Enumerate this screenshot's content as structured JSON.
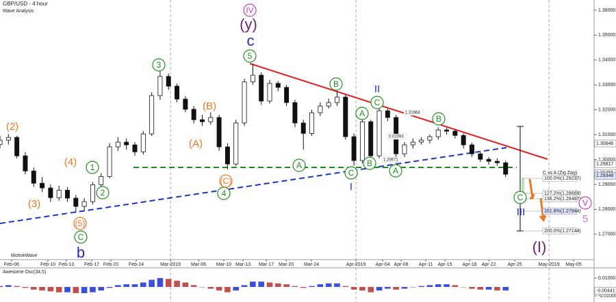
{
  "chart_data": {
    "type": "candlestick",
    "title": "GBP/USD - 4 hour",
    "subtitle": "Wave Analysis",
    "watermark": "MotiveWave",
    "xlim": [
      0,
      70.5
    ],
    "ylim": [
      1.2598,
      1.3641
    ],
    "yticks": [
      {
        "value": 1.36,
        "label": "1.36000"
      },
      {
        "value": 1.35,
        "label": "1.35000"
      },
      {
        "value": 1.34,
        "label": "1.34000"
      },
      {
        "value": 1.33,
        "label": "1.33000"
      },
      {
        "value": 1.32,
        "label": "1.32000"
      },
      {
        "value": 1.31,
        "label": "1.31000"
      },
      {
        "value": 1.3,
        "label": "1.30000"
      },
      {
        "value": 1.29,
        "label": "1.29000"
      },
      {
        "value": 1.28,
        "label": "1.28000"
      },
      {
        "value": 1.27,
        "label": "1.27000"
      }
    ],
    "xticks": [
      {
        "value": 1.38,
        "label": "Feb-06"
      },
      {
        "value": 5.69,
        "label": "Feb-10"
      },
      {
        "value": 7.88,
        "label": "Feb-13"
      },
      {
        "value": 10.89,
        "label": "Feb-17"
      },
      {
        "value": 13.16,
        "label": "Feb-20"
      },
      {
        "value": 16.17,
        "label": "Feb-24"
      },
      {
        "value": 20.23,
        "label": "Mar-2019"
      },
      {
        "value": 23.56,
        "label": "Mar-06"
      },
      {
        "value": 26.56,
        "label": "Mar-10"
      },
      {
        "value": 28.84,
        "label": "Mar-13"
      },
      {
        "value": 31.6,
        "label": "Mar-17"
      },
      {
        "value": 33.96,
        "label": "Mar-20"
      },
      {
        "value": 36.96,
        "label": "Mar-24"
      },
      {
        "value": 42.24,
        "label": "Apr-2019"
      },
      {
        "value": 45.41,
        "label": "Apr-04"
      },
      {
        "value": 47.6,
        "label": "Apr-08"
      },
      {
        "value": 50.53,
        "label": "Apr-11"
      },
      {
        "value": 52.8,
        "label": "Apr-15"
      },
      {
        "value": 55.73,
        "label": "Apr-18"
      },
      {
        "value": 58,
        "label": "Apr-22"
      },
      {
        "value": 61.09,
        "label": "Apr-25"
      },
      {
        "value": 65.15,
        "label": "May-2019"
      },
      {
        "value": 68.07,
        "label": "May-05"
      }
    ],
    "month_lines": [
      20.23,
      42.24,
      65.15
    ],
    "candle_color": "#111111",
    "candles": [
      [
        1.306,
        1.3095,
        1.3045,
        1.3078
      ],
      [
        1.3078,
        1.3102,
        1.306,
        1.3089
      ],
      [
        1.3089,
        1.3095,
        1.3005,
        1.3015
      ],
      [
        1.3015,
        1.303,
        1.294,
        1.2954
      ],
      [
        1.2954,
        1.2968,
        1.289,
        1.2905
      ],
      [
        1.2905,
        1.293,
        1.287,
        1.2886
      ],
      [
        1.2886,
        1.29,
        1.283,
        1.2847
      ],
      [
        1.2847,
        1.2895,
        1.2835,
        1.2877
      ],
      [
        1.2877,
        1.289,
        1.283,
        1.2845
      ],
      [
        1.2845,
        1.2858,
        1.2788,
        1.2812
      ],
      [
        1.2812,
        1.2845,
        1.2795,
        1.2831
      ],
      [
        1.2831,
        1.291,
        1.282,
        1.2899
      ],
      [
        1.2899,
        1.2945,
        1.2885,
        1.2932
      ],
      [
        1.2932,
        1.3065,
        1.2925,
        1.3051
      ],
      [
        1.3051,
        1.309,
        1.3035,
        1.307
      ],
      [
        1.307,
        1.3085,
        1.304,
        1.3059
      ],
      [
        1.3059,
        1.307,
        1.3015,
        1.3031
      ],
      [
        1.3031,
        1.3115,
        1.302,
        1.3103
      ],
      [
        1.3103,
        1.327,
        1.3095,
        1.3257
      ],
      [
        1.3257,
        1.3355,
        1.324,
        1.3334
      ],
      [
        1.3334,
        1.3345,
        1.328,
        1.3295
      ],
      [
        1.3295,
        1.3305,
        1.323,
        1.3243
      ],
      [
        1.3243,
        1.3255,
        1.319,
        1.3202
      ],
      [
        1.3202,
        1.3215,
        1.3145,
        1.316
      ],
      [
        1.316,
        1.318,
        1.3135,
        1.3152
      ],
      [
        1.3152,
        1.319,
        1.314,
        1.3169
      ],
      [
        1.3169,
        1.318,
        1.3035,
        1.3051
      ],
      [
        1.3051,
        1.3065,
        1.296,
        1.2982
      ],
      [
        1.2982,
        1.316,
        1.2975,
        1.3147
      ],
      [
        1.3147,
        1.3325,
        1.3135,
        1.3312
      ],
      [
        1.3312,
        1.3385,
        1.33,
        1.3339
      ],
      [
        1.3339,
        1.335,
        1.322,
        1.3235
      ],
      [
        1.3235,
        1.332,
        1.3225,
        1.3306
      ],
      [
        1.3306,
        1.3315,
        1.3275,
        1.329
      ],
      [
        1.329,
        1.33,
        1.3215,
        1.3229
      ],
      [
        1.3229,
        1.324,
        1.313,
        1.3147
      ],
      [
        1.3147,
        1.316,
        1.304,
        1.3105
      ],
      [
        1.3105,
        1.32,
        1.3095,
        1.3188
      ],
      [
        1.3188,
        1.323,
        1.3175,
        1.3215
      ],
      [
        1.3215,
        1.3245,
        1.3205,
        1.3229
      ],
      [
        1.3229,
        1.3275,
        1.3215,
        1.3251
      ],
      [
        1.3251,
        1.326,
        1.308,
        1.3092
      ],
      [
        1.3092,
        1.3105,
        1.2975,
        1.2996
      ],
      [
        1.2996,
        1.3165,
        1.2985,
        1.3152
      ],
      [
        1.3152,
        1.316,
        1.3,
        1.3015
      ],
      [
        1.3015,
        1.321,
        1.3005,
        1.3196
      ],
      [
        1.3196,
        1.3205,
        1.3155,
        1.3169
      ],
      [
        1.3169,
        1.318,
        1.2985,
        1.3023
      ],
      [
        1.3023,
        1.307,
        1.301,
        1.3059
      ],
      [
        1.3059,
        1.3085,
        1.3045,
        1.307
      ],
      [
        1.307,
        1.309,
        1.306,
        1.3078
      ],
      [
        1.3078,
        1.31,
        1.3065,
        1.3092
      ],
      [
        1.3092,
        1.313,
        1.308,
        1.3119
      ],
      [
        1.3119,
        1.3128,
        1.31,
        1.3114
      ],
      [
        1.3114,
        1.312,
        1.3085,
        1.3097
      ],
      [
        1.3097,
        1.3105,
        1.3045,
        1.3059
      ],
      [
        1.3059,
        1.3068,
        1.301,
        1.3023
      ],
      [
        1.3023,
        1.303,
        1.299,
        1.3001
      ],
      [
        1.3001,
        1.301,
        1.298,
        1.2993
      ],
      [
        1.2993,
        1.3005,
        1.2975,
        1.2987
      ],
      [
        1.2987,
        1.2995,
        1.293,
        1.2941
      ]
    ],
    "price_labels": [
      1.30646,
      1.29817,
      1.29455,
      1.29348
    ],
    "fib_title": "C vs A (Zig Zag)",
    "fib_labels": [
      "100.0%(1.29237)",
      "127.2%(1.28669)",
      "136.2%(1.28487)",
      "161.8%(1.27944)",
      "200.0%(1.27144)"
    ],
    "notes": [
      "1.31964",
      "0.02093",
      "1.29671"
    ],
    "wave_labels": [
      {
        "text": "3",
        "color": "#1e8c1e",
        "circle": true
      },
      {
        "text": "5",
        "color": "#1e8c1e",
        "circle": true
      },
      {
        "text": "1",
        "color": "#1e8c1e",
        "circle": true
      },
      {
        "text": "2",
        "color": "#1e8c1e",
        "circle": true
      },
      {
        "text": "4",
        "color": "#1e8c1e",
        "circle": true
      },
      {
        "text": "C",
        "color": "#1e8c1e",
        "circle": true
      },
      {
        "text": "B",
        "color": "#1e8c1e",
        "circle": true
      },
      {
        "text": "A",
        "color": "#1e8c1e",
        "circle": true
      },
      {
        "text": "C",
        "color": "#1e8c1e",
        "circle": true
      },
      {
        "text": "B",
        "color": "#1e8c1e",
        "circle": true
      },
      {
        "text": "A",
        "color": "#1e8c1e",
        "circle": true
      },
      {
        "text": "B",
        "color": "#1e8c1e",
        "circle": true
      },
      {
        "text": "C",
        "color": "#1e8c1e",
        "circle": true
      },
      {
        "text": "A",
        "color": "#1e8c1e",
        "circle": true
      },
      {
        "text": "C",
        "color": "#1e8c1e",
        "circle": true
      },
      {
        "text": "(2)",
        "color": "#e87722",
        "circle": false
      },
      {
        "text": "(4)",
        "color": "#e87722",
        "circle": false
      },
      {
        "text": "(3)",
        "color": "#e87722",
        "circle": false
      },
      {
        "text": "(5)",
        "color": "#e87722",
        "circle": true
      },
      {
        "text": "(A)",
        "color": "#e87722",
        "circle": false
      },
      {
        "text": "(B)",
        "color": "#e87722",
        "circle": false
      },
      {
        "text": "(C)",
        "color": "#e87722",
        "circle": true
      },
      {
        "text": "c",
        "color": "#1f2fbf",
        "circle": false
      },
      {
        "text": "b",
        "color": "#1f2fbf",
        "circle": false
      },
      {
        "text": "II",
        "color": "#1f2fbf",
        "circle": false
      },
      {
        "text": "I",
        "color": "#1f2fbf",
        "circle": false
      },
      {
        "text": "III",
        "color": "#1f2fbf",
        "circle": false
      },
      {
        "text": "IV",
        "color": "#c040c0",
        "circle": true
      },
      {
        "text": "(y)",
        "color": "#6a1f7a",
        "circle": false
      },
      {
        "text": "(I)",
        "color": "#6a1f7a",
        "circle": false
      },
      {
        "text": "V",
        "color": "#c040c0",
        "circle": true
      },
      {
        "text": "5",
        "color": "#c878d0",
        "circle": false
      }
    ],
    "oscillator": {
      "title": "Awesome Osc(34,5)",
      "ylim": [
        -0.0154,
        0.0215
      ],
      "yticks": [
        {
          "value": 0.01,
          "label": "0.01000"
        },
        {
          "value": -0.01,
          "label": "-0.01000"
        }
      ],
      "current": -0.00441,
      "up_color": "#3b4fd8",
      "down_color": "#c0504d",
      "values": [
        0.001,
        0.002,
        0.001,
        -0.001,
        -0.003,
        -0.004,
        -0.005,
        -0.006,
        -0.006,
        -0.007,
        -0.007,
        -0.006,
        -0.004,
        -0.001,
        0.002,
        0.003,
        0.003,
        0.005,
        0.008,
        0.01,
        0.009,
        0.007,
        0.005,
        0.002,
        0.0,
        -0.002,
        -0.004,
        -0.006,
        -0.004,
        0.002,
        0.006,
        0.006,
        0.005,
        0.004,
        0.003,
        0.001,
        -0.001,
        0.001,
        0.003,
        0.004,
        0.004,
        0.001,
        -0.003,
        -0.004,
        -0.006,
        -0.004,
        -0.002,
        -0.003,
        -0.002,
        0.0,
        0.001,
        0.002,
        0.003,
        0.003,
        0.002,
        0.0,
        -0.002,
        -0.003,
        -0.003,
        -0.004,
        -0.004
      ]
    }
  }
}
